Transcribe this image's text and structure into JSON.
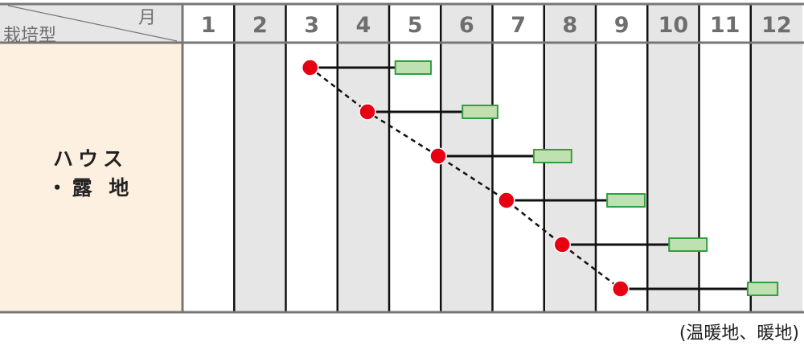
{
  "header": {
    "month_label": "月",
    "type_label": "栽培型"
  },
  "months": [
    "1",
    "2",
    "3",
    "4",
    "5",
    "6",
    "7",
    "8",
    "9",
    "10",
    "11",
    "12"
  ],
  "crop_type": {
    "line1": "ハウス",
    "line2": "・露 地"
  },
  "note": "(温暖地、暖地)",
  "colors": {
    "sow": "#e60012",
    "harvest_fill": "#bfe0b0",
    "harvest_border": "#2fa040",
    "crop_bg": "#fdf0e0",
    "shade": "#e6e6e6"
  },
  "schedule": [
    {
      "sow_month": 3.47,
      "harvest_start": 5.12,
      "harvest_end": 5.81
    },
    {
      "sow_month": 4.58,
      "harvest_start": 6.42,
      "harvest_end": 7.1
    },
    {
      "sow_month": 5.95,
      "harvest_start": 7.8,
      "harvest_end": 8.53
    },
    {
      "sow_month": 7.27,
      "harvest_start": 9.22,
      "harvest_end": 9.95
    },
    {
      "sow_month": 8.35,
      "harvest_start": 10.42,
      "harvest_end": 11.15
    },
    {
      "sow_month": 9.48,
      "harvest_start": 11.94,
      "harvest_end": 12.52
    }
  ]
}
